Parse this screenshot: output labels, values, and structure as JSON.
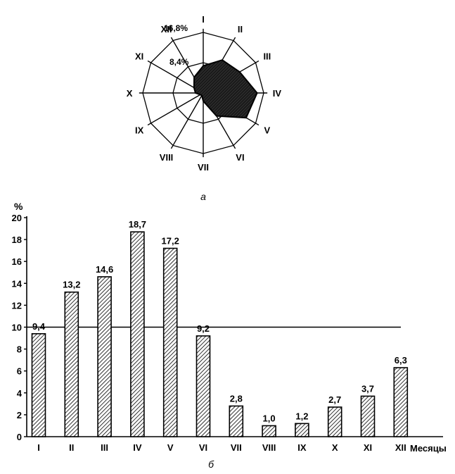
{
  "chart_data": [
    {
      "type": "radar",
      "caption": "а",
      "axes": [
        "I",
        "II",
        "III",
        "IV",
        "V",
        "VI",
        "VII",
        "VIII",
        "IX",
        "X",
        "XI",
        "XII"
      ],
      "values": [
        9.4,
        13.2,
        14.6,
        18.7,
        17.2,
        9.2,
        2.8,
        1.0,
        1.2,
        2.7,
        3.7,
        6.3
      ],
      "ring_labels": [
        "8,4%",
        "16,8%"
      ],
      "filled_series_note": "shaded",
      "scale_max": 21.0
    },
    {
      "type": "bar",
      "caption": "б",
      "ylabel": "%",
      "xlabel": "Месяцы",
      "categories": [
        "I",
        "II",
        "III",
        "IV",
        "V",
        "VI",
        "VII",
        "VIII",
        "IX",
        "X",
        "XI",
        "XII"
      ],
      "values": [
        9.4,
        13.2,
        14.6,
        18.7,
        17.2,
        9.2,
        2.8,
        1.0,
        1.2,
        2.7,
        3.7,
        6.3
      ],
      "value_labels": [
        "9,4",
        "13,2",
        "14,6",
        "18,7",
        "17,2",
        "9,2",
        "2,8",
        "1,0",
        "1,2",
        "2,7",
        "3,7",
        "6,3"
      ],
      "ylim": [
        0,
        20
      ],
      "yticks": [
        "0",
        "2",
        "4",
        "6",
        "8",
        "10",
        "12",
        "14",
        "16",
        "18",
        "20"
      ],
      "reference_line": 10,
      "bar_pattern": "hatched"
    }
  ]
}
